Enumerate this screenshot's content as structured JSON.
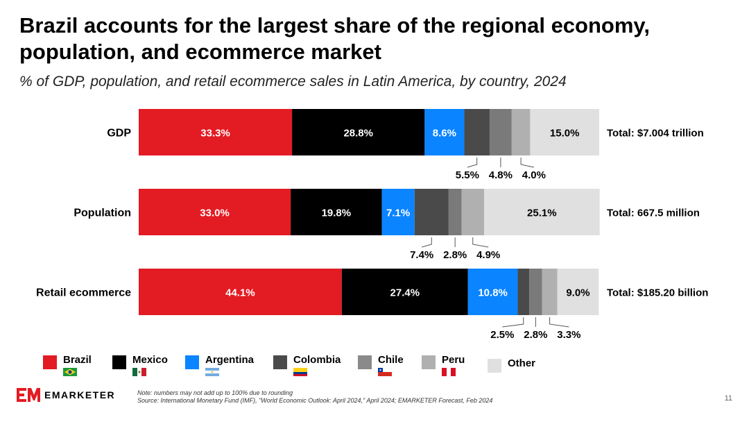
{
  "header": {
    "title": "Brazil accounts for the largest share of the regional economy, population, and ecommerce market",
    "subtitle": "% of GDP, population, and retail ecommerce sales in Latin America, by country, 2024"
  },
  "chart_data": {
    "type": "bar",
    "orientation": "horizontal",
    "stacked": true,
    "percent_stacked": true,
    "categories": [
      "GDP",
      "Population",
      "Retail ecommerce"
    ],
    "totals": [
      "Total: $7.004 trillion",
      "Total: 667.5 million",
      "Total: $185.20 billion"
    ],
    "series": [
      {
        "name": "Brazil",
        "color": "#e31b23",
        "values": [
          33.3,
          33.0,
          44.1
        ],
        "labels": [
          "33.3%",
          "33.0%",
          "44.1%"
        ]
      },
      {
        "name": "Mexico",
        "color": "#000000",
        "values": [
          28.8,
          19.8,
          27.4
        ],
        "labels": [
          "28.8%",
          "19.8%",
          "27.4%"
        ]
      },
      {
        "name": "Argentina",
        "color": "#0a84ff",
        "values": [
          8.6,
          7.1,
          10.8
        ],
        "labels": [
          "8.6%",
          "7.1%",
          "10.8%"
        ]
      },
      {
        "name": "Colombia",
        "color": "#4a4a4a",
        "values": [
          5.5,
          7.4,
          2.5
        ],
        "labels": [
          "5.5%",
          "7.4%",
          "2.5%"
        ]
      },
      {
        "name": "Chile",
        "color": "#7a7a7a",
        "values": [
          4.8,
          2.8,
          2.8
        ],
        "labels": [
          "4.8%",
          "2.8%",
          "2.8%"
        ]
      },
      {
        "name": "Peru",
        "color": "#b0b0b0",
        "values": [
          4.0,
          4.9,
          3.3
        ],
        "labels": [
          "4.0%",
          "4.9%",
          "3.3%"
        ]
      },
      {
        "name": "Other",
        "color": "#e0e0e0",
        "values": [
          15.0,
          25.1,
          9.0
        ],
        "labels": [
          "15.0%",
          "25.1%",
          "9.0%"
        ]
      }
    ],
    "xlim": [
      0,
      100
    ],
    "legend_position": "bottom"
  },
  "legend": {
    "items": [
      {
        "label": "Brazil",
        "color": "#e31b23",
        "flag": "brazil-flag-icon"
      },
      {
        "label": "Mexico",
        "color": "#000000",
        "flag": "mexico-flag-icon"
      },
      {
        "label": "Argentina",
        "color": "#0a84ff",
        "flag": "argentina-flag-icon"
      },
      {
        "label": "Colombia",
        "color": "#4a4a4a",
        "flag": "colombia-flag-icon"
      },
      {
        "label": "Chile",
        "color": "#8a8a8a",
        "flag": "chile-flag-icon"
      },
      {
        "label": "Peru",
        "color": "#b0b0b0",
        "flag": "peru-flag-icon"
      },
      {
        "label": "Other",
        "color": "#e0e0e0",
        "flag": null
      }
    ]
  },
  "footer": {
    "logo_text": "EMARKETER",
    "note": "Note: numbers may not add up to 100% due to rounding",
    "source": "Source: International Monetary Fund (IMF), \"World Economic Outlook: April 2024,\" April 2024; EMARKETER Forecast, Feb 2024",
    "page_number": "11"
  }
}
